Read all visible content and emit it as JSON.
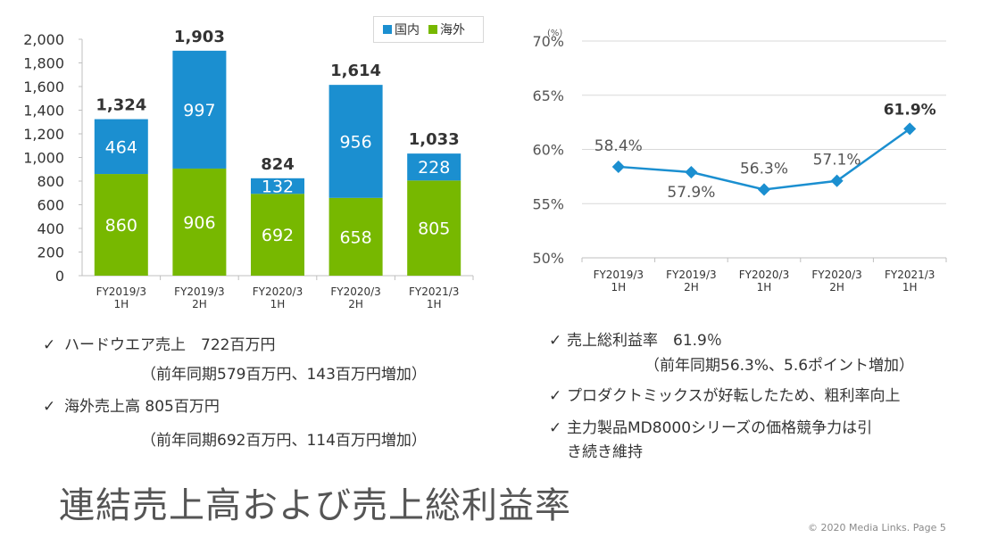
{
  "chart_data": [
    {
      "type": "bar",
      "stacked": true,
      "categories": [
        "FY2019/3\n1H",
        "FY2019/3\n2H",
        "FY2020/3\n1H",
        "FY2020/3\n2H",
        "FY2021/3\n1H"
      ],
      "series": [
        {
          "name": "海外",
          "color": "#77b800",
          "values": [
            860,
            906,
            692,
            658,
            805
          ]
        },
        {
          "name": "国内",
          "color": "#1b8fd0",
          "values": [
            464,
            997,
            132,
            956,
            228
          ]
        }
      ],
      "totals": [
        "1,324",
        "1,903",
        "824",
        "1,614",
        "1,033"
      ],
      "ylim": [
        0,
        2000
      ],
      "yticks": [
        "0",
        "200",
        "400",
        "600",
        "800",
        "1,000",
        "1,200",
        "1,400",
        "1,600",
        "1,800",
        "2,000"
      ],
      "legend_position": "top-right",
      "grid": false
    },
    {
      "type": "line",
      "categories": [
        "FY2019/3\n1H",
        "FY2019/3\n2H",
        "FY2020/3\n1H",
        "FY2020/3\n2H",
        "FY2021/3\n1H"
      ],
      "series": [
        {
          "color": "#1b8fd0",
          "values": [
            58.4,
            57.9,
            56.3,
            57.1,
            61.9
          ],
          "labels": [
            "58.4%",
            "57.9%",
            "56.3%",
            "57.1%",
            "61.9%"
          ]
        }
      ],
      "unit_label": "(%)",
      "ylim": [
        50,
        70
      ],
      "yticks": [
        "50%",
        "55%",
        "60%",
        "65%",
        "70%"
      ],
      "grid": true
    }
  ],
  "bullets_left": {
    "b1": "ハードウエア売上　722百万円",
    "b1_sub": "（前年同期579百万円、143百万円増加）",
    "b2": "海外売上高 805百万円",
    "b2_sub": "（前年同期692百万円、114百万円増加）"
  },
  "bullets_right": {
    "b1": "売上総利益率　61.9％",
    "b1_sub": "（前年同期56.3%、5.6ポイント増加）",
    "b2": "プロダクトミックスが好転したため、粗利率向上",
    "b3_line1": "主力製品MD8000シリーズの価格競争力は引",
    "b3_line2": "き続き維持"
  },
  "check_glyph": "✓",
  "title": "連結売上高および売上総利益率",
  "footer": "© 2020 Media Links. Page 5"
}
